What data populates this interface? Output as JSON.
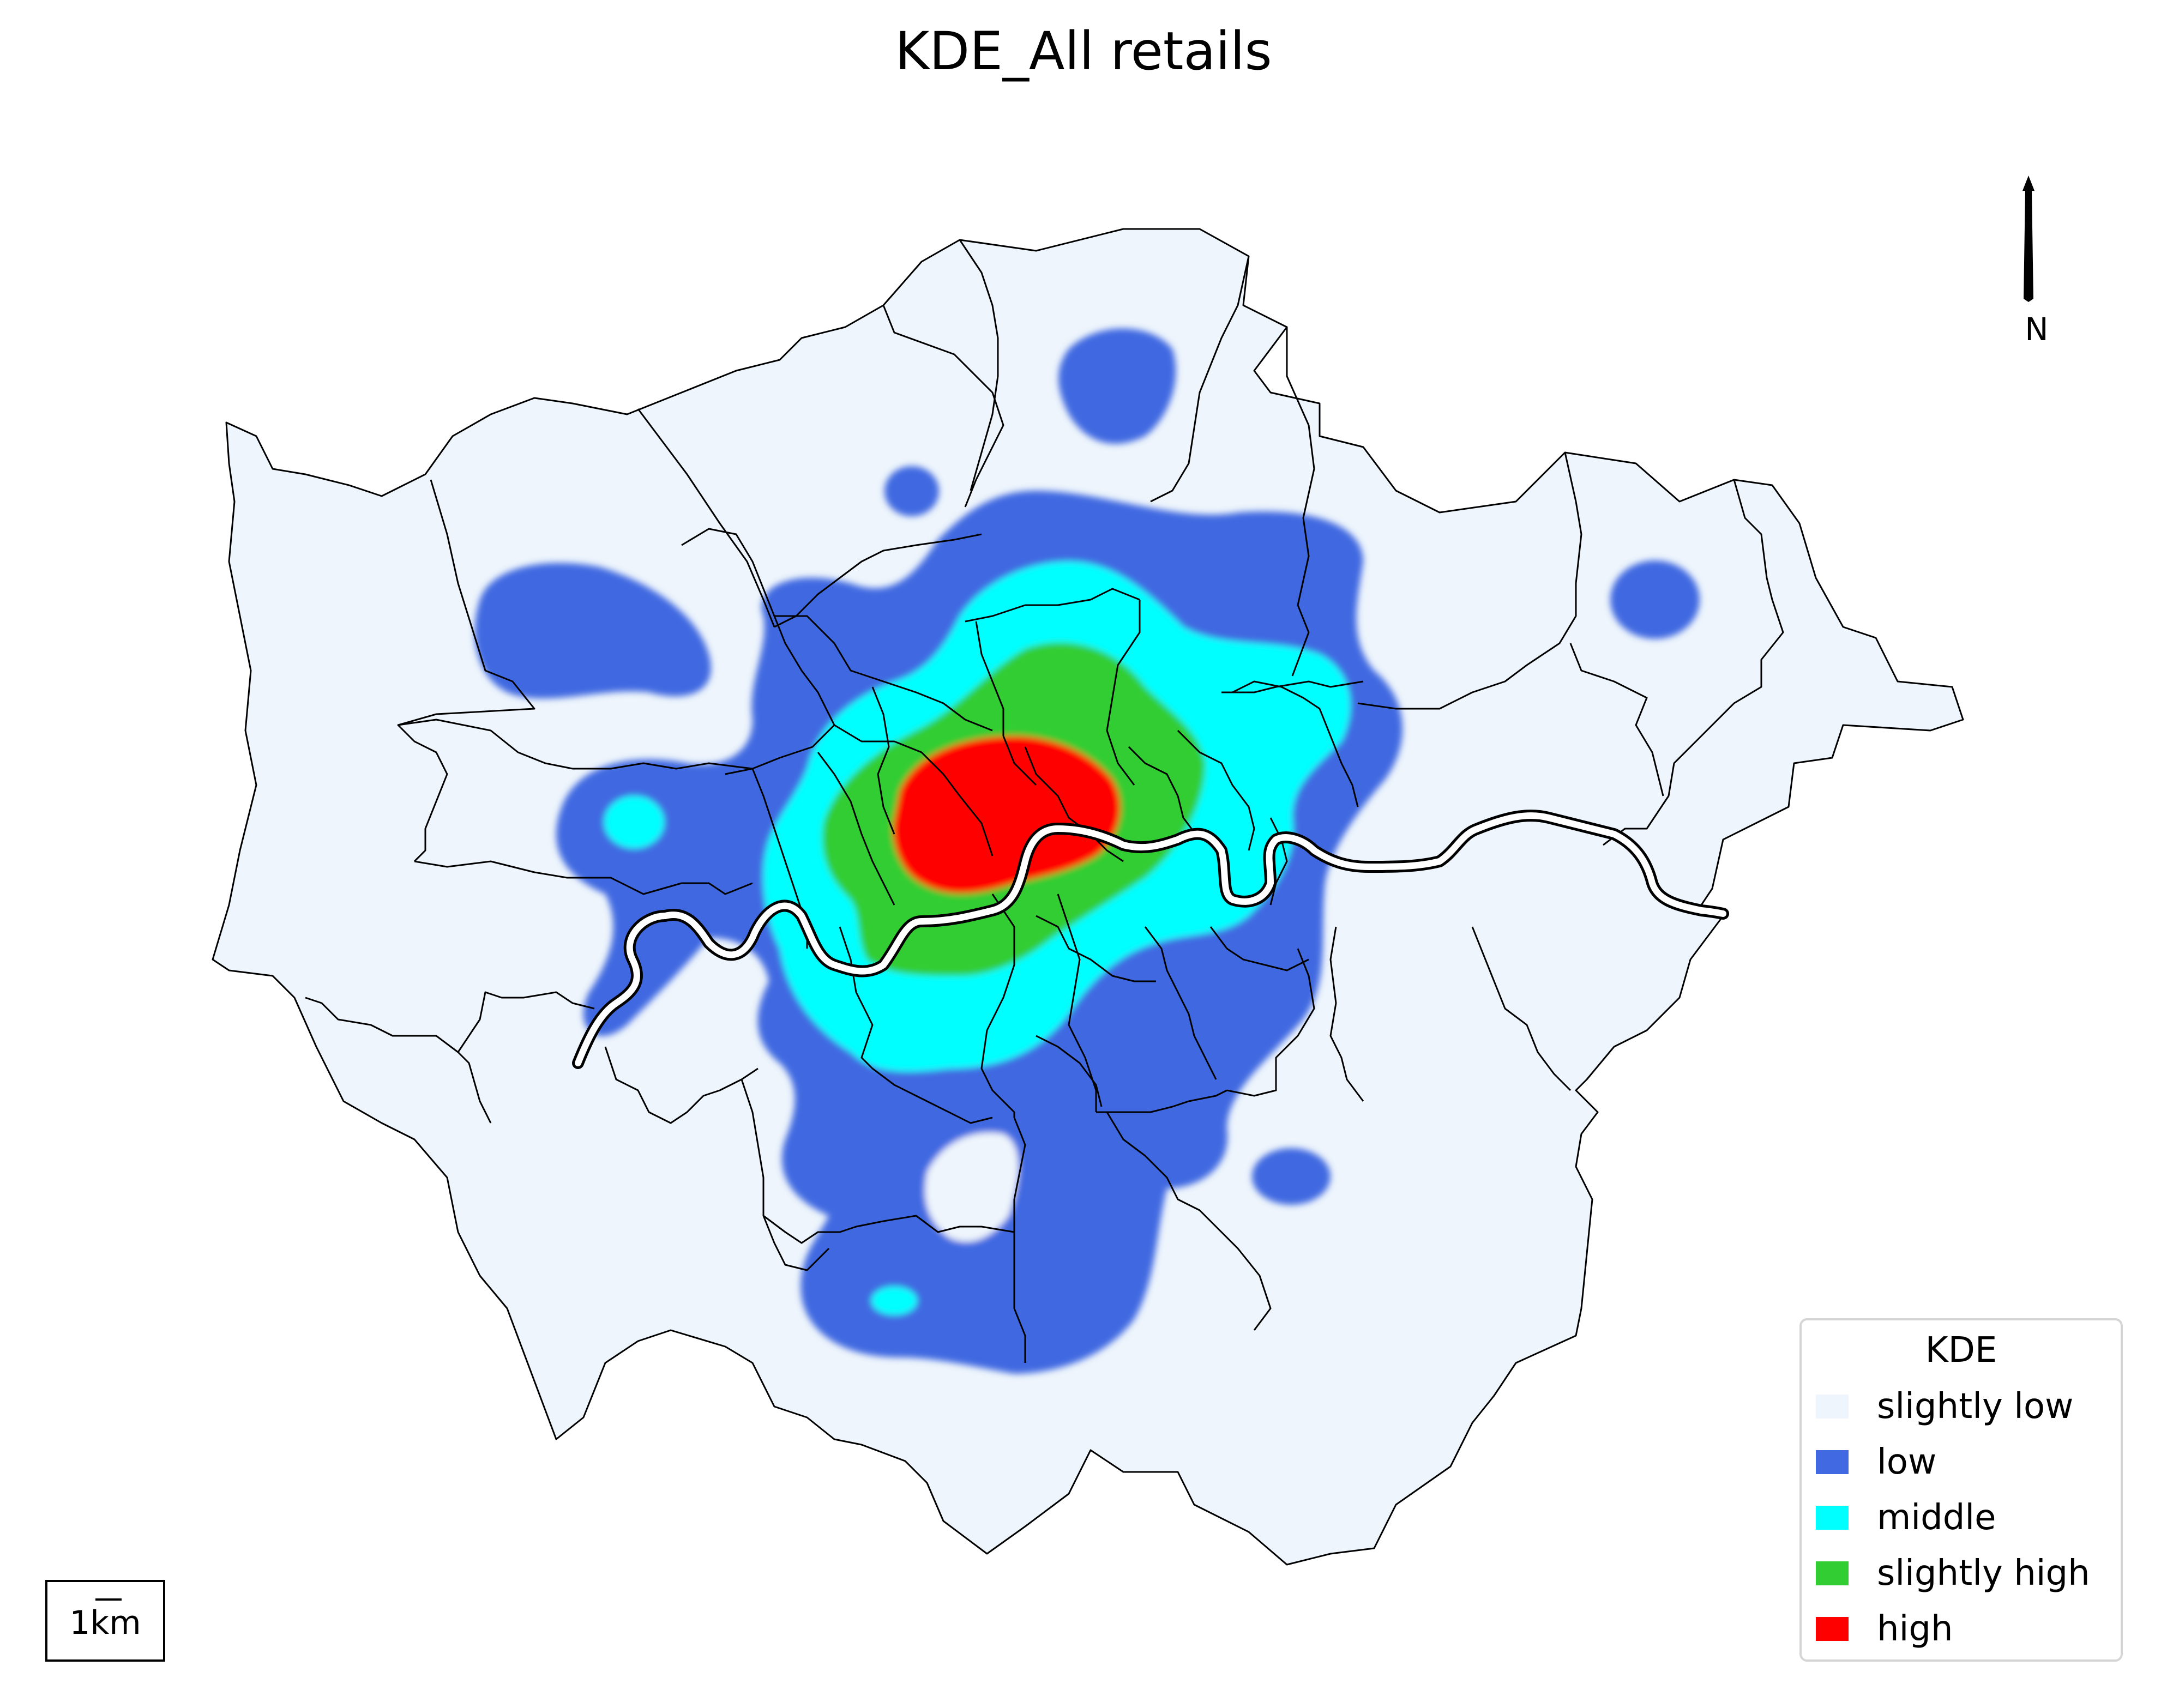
{
  "title": "KDE_All retails",
  "north": {
    "label": "N",
    "icon": "north-arrow-icon"
  },
  "scale": {
    "label": "1km"
  },
  "legend": {
    "title": "KDE",
    "items": [
      {
        "label": "slightly low",
        "color": "#eef5fc"
      },
      {
        "label": "low",
        "color": "#4169e1"
      },
      {
        "label": "middle",
        "color": "#00ffff"
      },
      {
        "label": "slightly high",
        "color": "#32cd32"
      },
      {
        "label": "high",
        "color": "#ff0000"
      }
    ]
  },
  "colors": {
    "boundary": "#000000",
    "river": "#ffffff",
    "background": "#ffffff"
  }
}
